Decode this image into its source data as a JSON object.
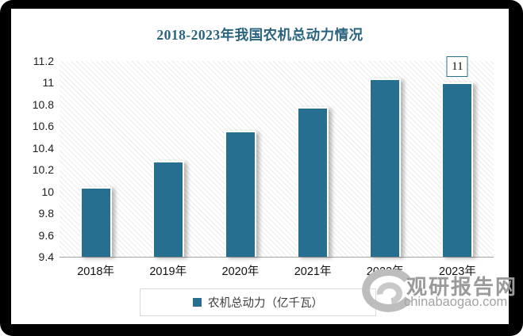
{
  "chart_data": {
    "type": "bar",
    "title": "2018-2023年我国农机总动力情况",
    "categories": [
      "2018年",
      "2019年",
      "2020年",
      "2021年",
      "2022年",
      "2023年"
    ],
    "series": [
      {
        "name": "农机总动力（亿千瓦）",
        "values": [
          10.04,
          10.28,
          10.56,
          10.78,
          11.04,
          11.0
        ]
      }
    ],
    "data_labels": [
      {
        "category": "2023年",
        "label": "11"
      }
    ],
    "ylim": [
      9.4,
      11.2
    ],
    "ytick_step": 0.2,
    "yticks": [
      "11.2",
      "11",
      "10.8",
      "10.6",
      "10.4",
      "10.2",
      "10",
      "9.8",
      "9.6",
      "9.4"
    ],
    "xlabel": "",
    "ylabel": "",
    "grid": false,
    "legend_position": "bottom",
    "plot_background": "diagonal-hatch",
    "bar_color": "#276F91",
    "title_color": "#2A637D"
  },
  "watermark": {
    "name": "观研报告网",
    "domain": "chinabaogao.com"
  }
}
